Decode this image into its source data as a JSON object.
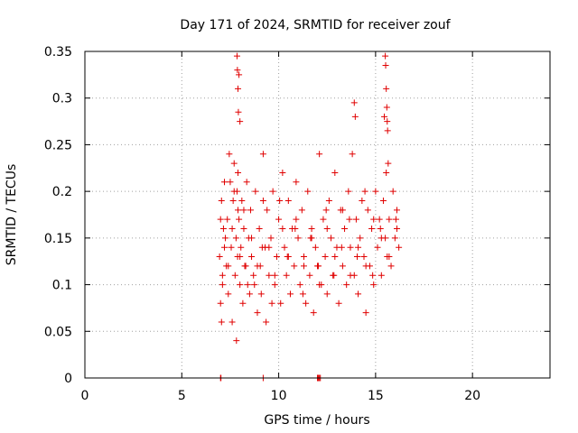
{
  "chart_data": {
    "type": "scatter",
    "title": "Day 171 of 2024, SRMTID for receiver zouf",
    "xlabel": "GPS time / hours",
    "ylabel": "SRMTID / TECUs",
    "xlim": [
      0,
      24
    ],
    "ylim": [
      0,
      0.35
    ],
    "xticks": [
      0,
      5,
      10,
      15,
      20
    ],
    "xtick_labels": [
      "0",
      "5",
      "10",
      "15",
      "20"
    ],
    "yticks": [
      0,
      0.05,
      0.1,
      0.15,
      0.2,
      0.25,
      0.3,
      0.35
    ],
    "ytick_labels": [
      "0",
      "0.05",
      "0.1",
      "0.15",
      "0.2",
      "0.25",
      "0.3",
      "0.35"
    ],
    "grid": true,
    "marker": "+",
    "color": "#e00000",
    "x": [
      6.95,
      7.0,
      7.05,
      7.1,
      7.15,
      7.2,
      7.3,
      7.35,
      7.4,
      7.45,
      7.55,
      7.6,
      7.65,
      7.7,
      7.75,
      7.8,
      7.82,
      7.85,
      7.88,
      7.9,
      7.95,
      8.0,
      8.05,
      8.1,
      8.15,
      8.2,
      8.3,
      8.35,
      8.45,
      8.5,
      8.55,
      8.6,
      8.7,
      8.8,
      8.9,
      9.0,
      9.05,
      9.1,
      9.2,
      9.3,
      9.35,
      9.4,
      9.5,
      9.6,
      9.7,
      9.8,
      9.9,
      10.0,
      10.1,
      10.2,
      10.3,
      10.4,
      10.5,
      10.6,
      10.7,
      10.8,
      10.9,
      11.0,
      11.1,
      11.2,
      11.3,
      11.4,
      11.5,
      11.6,
      11.7,
      11.8,
      11.9,
      12.0,
      12.1,
      12.2,
      12.3,
      12.4,
      12.5,
      12.6,
      12.7,
      12.8,
      12.9,
      13.0,
      13.1,
      13.2,
      13.3,
      13.4,
      13.5,
      13.6,
      13.7,
      13.8,
      13.9,
      14.0,
      14.1,
      14.2,
      14.3,
      14.4,
      14.5,
      14.6,
      14.7,
      14.8,
      14.9,
      15.0,
      15.1,
      15.2,
      15.3,
      15.4,
      15.45,
      15.5,
      15.55,
      15.6,
      15.7,
      15.8,
      15.9,
      16.0,
      16.1,
      16.2,
      7.0,
      7.1,
      7.2,
      7.4,
      7.6,
      7.7,
      8.0,
      8.2,
      8.4,
      8.6,
      8.9,
      9.2,
      9.5,
      9.8,
      10.2,
      10.5,
      10.9,
      11.3,
      11.7,
      12.1,
      12.5,
      12.9,
      13.3,
      13.7,
      14.1,
      14.5,
      14.9,
      15.3,
      15.7,
      16.1,
      7.05,
      7.25,
      7.5,
      7.9,
      8.25,
      8.75,
      9.15,
      9.65,
      10.05,
      10.45,
      10.85,
      11.25,
      11.65,
      12.05,
      12.45,
      12.85,
      13.25,
      13.65,
      14.05,
      14.45,
      14.85,
      15.25,
      15.65,
      16.05,
      7.85,
      7.87,
      7.9,
      7.92,
      7.95,
      8.0,
      15.5,
      15.52,
      15.55,
      15.58,
      15.6,
      15.62,
      13.9,
      13.95,
      7.0,
      7.02,
      9.2,
      12.0,
      12.05,
      12.1,
      12.15
    ],
    "y": [
      0.13,
      0.08,
      0.19,
      0.11,
      0.16,
      0.21,
      0.12,
      0.17,
      0.09,
      0.24,
      0.14,
      0.06,
      0.19,
      0.23,
      0.11,
      0.15,
      0.04,
      0.2,
      0.13,
      0.22,
      0.17,
      0.1,
      0.14,
      0.19,
      0.08,
      0.16,
      0.12,
      0.21,
      0.15,
      0.09,
      0.18,
      0.13,
      0.11,
      0.2,
      0.07,
      0.16,
      0.12,
      0.09,
      0.24,
      0.14,
      0.06,
      0.18,
      0.11,
      0.15,
      0.2,
      0.1,
      0.13,
      0.17,
      0.08,
      0.22,
      0.14,
      0.11,
      0.19,
      0.09,
      0.16,
      0.12,
      0.21,
      0.15,
      0.1,
      0.18,
      0.13,
      0.08,
      0.2,
      0.11,
      0.16,
      0.07,
      0.14,
      0.12,
      0.24,
      0.1,
      0.17,
      0.13,
      0.09,
      0.19,
      0.15,
      0.11,
      0.22,
      0.14,
      0.08,
      0.18,
      0.12,
      0.16,
      0.1,
      0.2,
      0.14,
      0.24,
      0.11,
      0.17,
      0.09,
      0.15,
      0.19,
      0.13,
      0.07,
      0.18,
      0.12,
      0.16,
      0.1,
      0.2,
      0.14,
      0.17,
      0.11,
      0.19,
      0.28,
      0.15,
      0.22,
      0.13,
      0.17,
      0.12,
      0.2,
      0.15,
      0.18,
      0.14,
      0.17,
      0.1,
      0.14,
      0.12,
      0.16,
      0.2,
      0.13,
      0.18,
      0.1,
      0.15,
      0.12,
      0.19,
      0.14,
      0.11,
      0.16,
      0.13,
      0.17,
      0.12,
      0.15,
      0.1,
      0.16,
      0.13,
      0.18,
      0.11,
      0.14,
      0.12,
      0.17,
      0.15,
      0.13,
      0.16,
      0.06,
      0.15,
      0.21,
      0.18,
      0.12,
      0.1,
      0.14,
      0.08,
      0.19,
      0.13,
      0.16,
      0.09,
      0.15,
      0.12,
      0.18,
      0.11,
      0.14,
      0.17,
      0.13,
      0.2,
      0.11,
      0.16,
      0.23,
      0.17,
      0.345,
      0.33,
      0.31,
      0.285,
      0.325,
      0.275,
      0.345,
      0.335,
      0.31,
      0.29,
      0.275,
      0.265,
      0.295,
      0.28,
      0.0,
      0.0,
      0.0,
      0.0,
      0.0,
      0.0,
      0.0
    ]
  }
}
